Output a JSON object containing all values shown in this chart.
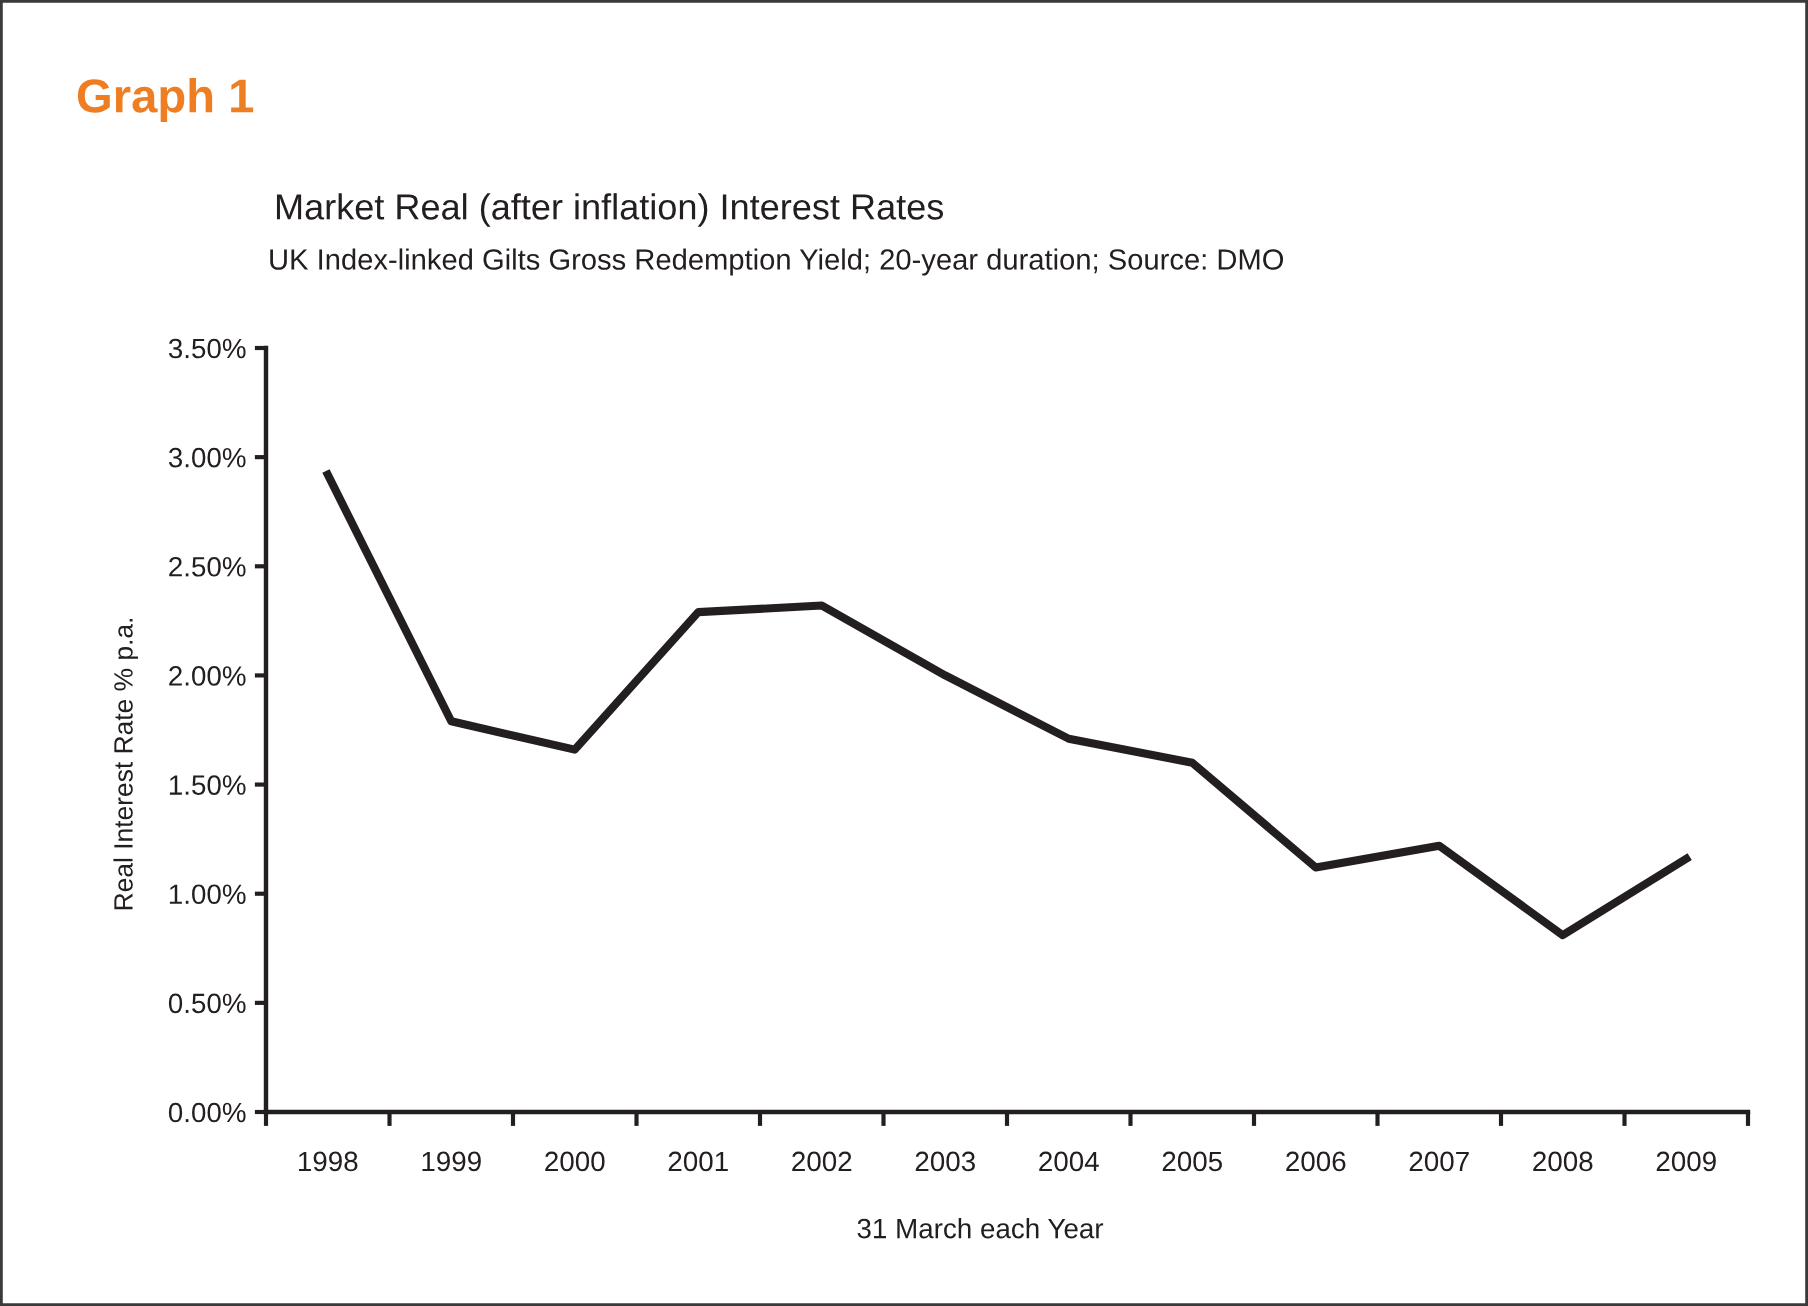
{
  "chart_data": {
    "type": "line",
    "title": "Market Real (after inflation) Interest Rates",
    "subtitle": "UK Index-linked Gilts Gross Redemption Yield; 20-year duration; Source: DMO",
    "xlabel": "31 March each Year",
    "ylabel": "Real Interest Rate % p.a.",
    "annotations": [
      "Graph 1"
    ],
    "categories": [
      "1998",
      "1999",
      "2000",
      "2001",
      "2002",
      "2003",
      "2004",
      "2005",
      "2006",
      "2007",
      "2008",
      "2009"
    ],
    "values": [
      2.92,
      1.79,
      1.66,
      2.29,
      2.32,
      2.0,
      1.71,
      1.6,
      1.12,
      1.22,
      0.81,
      1.16
    ],
    "color": "#231f20",
    "ylim": [
      0,
      3.5
    ],
    "yticks": [
      {
        "value": 0,
        "label": "0.00%"
      },
      {
        "value": 0.5,
        "label": "0.50%"
      },
      {
        "value": 1,
        "label": "1.00%"
      },
      {
        "value": 1.5,
        "label": "1.50%"
      },
      {
        "value": 2,
        "label": "2.00%"
      },
      {
        "value": 2.5,
        "label": "2.50%"
      },
      {
        "value": 3,
        "label": "3.00%"
      },
      {
        "value": 3.5,
        "label": "3.50%"
      }
    ],
    "grid": false,
    "marker": "none",
    "line_style": "solid"
  }
}
